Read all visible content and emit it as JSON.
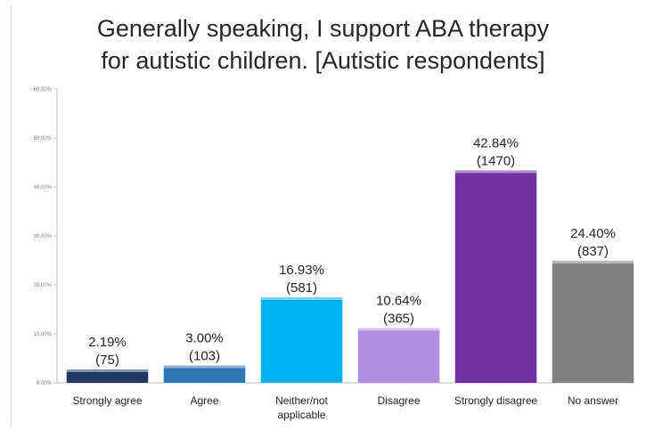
{
  "chart_data": {
    "type": "bar",
    "title_lines": [
      "Generally speaking, I support ABA therapy",
      "for autistic children. [Autistic respondents]"
    ],
    "categories": [
      [
        "Strongly agree"
      ],
      [
        "Agree"
      ],
      [
        "Neither/not",
        "applicable"
      ],
      [
        "Disagree"
      ],
      [
        "Strongly disagree"
      ],
      [
        "No answer"
      ]
    ],
    "values": [
      2.19,
      3.0,
      16.93,
      10.64,
      42.84,
      24.4
    ],
    "counts": [
      75,
      103,
      581,
      365,
      1470,
      837
    ],
    "value_labels": [
      "2.19%",
      "3.00%",
      "16.93%",
      "10.64%",
      "42.84%",
      "24.40%"
    ],
    "count_labels": [
      "(75)",
      "(103)",
      "(581)",
      "(365)",
      "(1470)",
      "(837)"
    ],
    "colors": [
      "#1f3864",
      "#2e75b6",
      "#00b0f0",
      "#b18fe0",
      "#7030a0",
      "#808080"
    ],
    "yticks": [
      "0.00%",
      "10.00%",
      "20.00%",
      "30.00%",
      "40.00%",
      "50.00%",
      "60.00%"
    ],
    "ylim": [
      0,
      60
    ],
    "grid": false,
    "legend": "none"
  }
}
